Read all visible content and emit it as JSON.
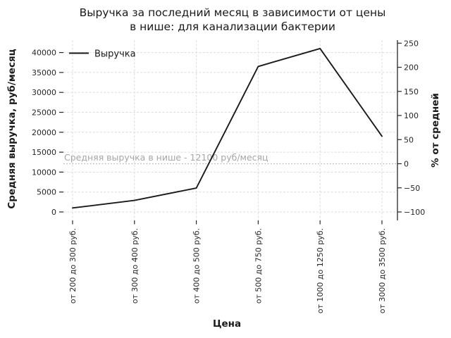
{
  "chart_data": {
    "type": "line",
    "title": "Выручка за последний месяц в зависимости от цены в нише: для канализации бактерии",
    "title_lines": [
      "Выручка за последний месяц в зависимости от цены",
      "в нише: для канализации бактерии"
    ],
    "xlabel": "Цена",
    "ylabel_left": "Средняя выручка, руб/месяц",
    "ylabel_right": "% от средней",
    "categories": [
      "от 200 до 300 руб.",
      "от 300 до 400 руб.",
      "от 400 до 500 руб.",
      "от 500 до 750 руб.",
      "от 1000 до 1250 руб.",
      "от 3000 до 3500 руб."
    ],
    "series": [
      {
        "name": "Выручка",
        "values": [
          1000,
          2900,
          6000,
          36500,
          41000,
          19000
        ],
        "color": "#1a1a1a"
      }
    ],
    "yticks_left": [
      0,
      5000,
      10000,
      15000,
      20000,
      25000,
      30000,
      35000,
      40000
    ],
    "yticks_right": [
      -100,
      -50,
      0,
      50,
      100,
      150,
      200,
      250
    ],
    "ylim_left": [
      0,
      43200
    ],
    "average_line": {
      "value": 12100,
      "label": "Средняя выручка в нише - 12100 руб/месяц",
      "style": "dotted",
      "color": "#b3b3b3"
    },
    "legend": {
      "position": "upper-left",
      "entries": [
        "Выручка"
      ]
    },
    "grid": true,
    "colors": {
      "grid": "#dcdcdc",
      "axis": "#262626",
      "tick_label": "#262626",
      "annotation": "#a6a6a6",
      "line": "#1a1a1a",
      "background": "#ffffff"
    }
  }
}
